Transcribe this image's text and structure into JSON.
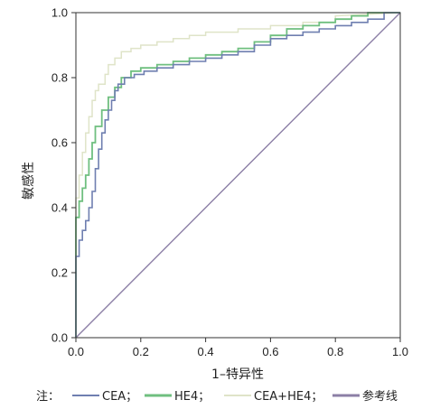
{
  "chart_data": {
    "type": "line",
    "xlabel": "1–特异性",
    "ylabel": "敏感性",
    "xlim": [
      0,
      1
    ],
    "ylim": [
      0,
      1
    ],
    "xticks": [
      "0.0",
      "0.2",
      "0.4",
      "0.6",
      "0.8",
      "1.0"
    ],
    "yticks": [
      "0.0",
      "0.2",
      "0.4",
      "0.6",
      "0.8",
      "1.0"
    ],
    "legend_prefix": "注：",
    "legend_placement": "bottom",
    "grid": false,
    "series": [
      {
        "name": "CEA；",
        "color": "#6f7fb0",
        "x": [
          0,
          0,
          0.01,
          0.01,
          0.02,
          0.02,
          0.03,
          0.03,
          0.04,
          0.04,
          0.05,
          0.05,
          0.06,
          0.06,
          0.07,
          0.07,
          0.08,
          0.08,
          0.09,
          0.09,
          0.1,
          0.1,
          0.11,
          0.11,
          0.12,
          0.12,
          0.13,
          0.13,
          0.15,
          0.15,
          0.18,
          0.18,
          0.21,
          0.21,
          0.25,
          0.25,
          0.3,
          0.3,
          0.35,
          0.35,
          0.4,
          0.4,
          0.45,
          0.45,
          0.5,
          0.5,
          0.55,
          0.55,
          0.6,
          0.6,
          0.65,
          0.65,
          0.7,
          0.7,
          0.75,
          0.75,
          0.8,
          0.8,
          0.85,
          0.85,
          0.9,
          0.9,
          0.95,
          0.95,
          1.0
        ],
        "y": [
          0,
          0.25,
          0.25,
          0.3,
          0.3,
          0.33,
          0.33,
          0.36,
          0.36,
          0.4,
          0.4,
          0.45,
          0.45,
          0.52,
          0.52,
          0.58,
          0.58,
          0.63,
          0.63,
          0.67,
          0.67,
          0.7,
          0.7,
          0.73,
          0.73,
          0.76,
          0.76,
          0.78,
          0.78,
          0.8,
          0.8,
          0.81,
          0.81,
          0.82,
          0.82,
          0.83,
          0.83,
          0.84,
          0.84,
          0.85,
          0.85,
          0.86,
          0.86,
          0.87,
          0.87,
          0.88,
          0.88,
          0.9,
          0.9,
          0.92,
          0.92,
          0.93,
          0.93,
          0.94,
          0.94,
          0.95,
          0.95,
          0.96,
          0.96,
          0.97,
          0.97,
          0.98,
          0.98,
          1.0,
          1.0
        ]
      },
      {
        "name": "HE4；",
        "color": "#6fbf7f",
        "x": [
          0,
          0,
          0.01,
          0.01,
          0.02,
          0.02,
          0.03,
          0.03,
          0.04,
          0.04,
          0.05,
          0.05,
          0.06,
          0.06,
          0.08,
          0.08,
          0.1,
          0.1,
          0.12,
          0.12,
          0.14,
          0.14,
          0.17,
          0.17,
          0.2,
          0.2,
          0.25,
          0.25,
          0.3,
          0.3,
          0.35,
          0.35,
          0.4,
          0.4,
          0.45,
          0.45,
          0.5,
          0.5,
          0.55,
          0.55,
          0.6,
          0.6,
          0.65,
          0.65,
          0.7,
          0.7,
          0.75,
          0.75,
          0.8,
          0.8,
          0.85,
          0.85,
          0.9,
          0.9,
          1.0
        ],
        "y": [
          0,
          0.37,
          0.37,
          0.42,
          0.42,
          0.46,
          0.46,
          0.5,
          0.5,
          0.55,
          0.55,
          0.6,
          0.6,
          0.65,
          0.65,
          0.7,
          0.7,
          0.74,
          0.74,
          0.77,
          0.77,
          0.8,
          0.8,
          0.82,
          0.82,
          0.83,
          0.83,
          0.84,
          0.84,
          0.85,
          0.85,
          0.86,
          0.86,
          0.87,
          0.87,
          0.88,
          0.88,
          0.89,
          0.89,
          0.91,
          0.91,
          0.93,
          0.93,
          0.95,
          0.95,
          0.96,
          0.96,
          0.97,
          0.97,
          0.98,
          0.98,
          0.99,
          0.99,
          1.0,
          1.0
        ]
      },
      {
        "name": "CEA+HE4；",
        "color": "#dfe4c8",
        "x": [
          0,
          0,
          0.01,
          0.01,
          0.02,
          0.02,
          0.03,
          0.03,
          0.04,
          0.04,
          0.05,
          0.05,
          0.06,
          0.06,
          0.07,
          0.07,
          0.09,
          0.09,
          0.1,
          0.1,
          0.12,
          0.12,
          0.14,
          0.14,
          0.17,
          0.17,
          0.2,
          0.2,
          0.25,
          0.25,
          0.3,
          0.3,
          0.35,
          0.35,
          0.4,
          0.4,
          0.5,
          0.5,
          0.6,
          0.6,
          0.7,
          0.7,
          0.8,
          0.8,
          1.0
        ],
        "y": [
          0,
          0.43,
          0.43,
          0.5,
          0.5,
          0.57,
          0.57,
          0.63,
          0.63,
          0.68,
          0.68,
          0.73,
          0.73,
          0.76,
          0.76,
          0.78,
          0.78,
          0.81,
          0.81,
          0.84,
          0.84,
          0.86,
          0.86,
          0.88,
          0.88,
          0.89,
          0.89,
          0.9,
          0.9,
          0.91,
          0.91,
          0.92,
          0.92,
          0.93,
          0.93,
          0.94,
          0.94,
          0.95,
          0.95,
          0.96,
          0.96,
          0.97,
          0.97,
          0.99,
          1.0
        ]
      },
      {
        "name": "参考线",
        "color": "#8c7fa6",
        "x": [
          0,
          1
        ],
        "y": [
          0,
          1
        ]
      }
    ]
  }
}
